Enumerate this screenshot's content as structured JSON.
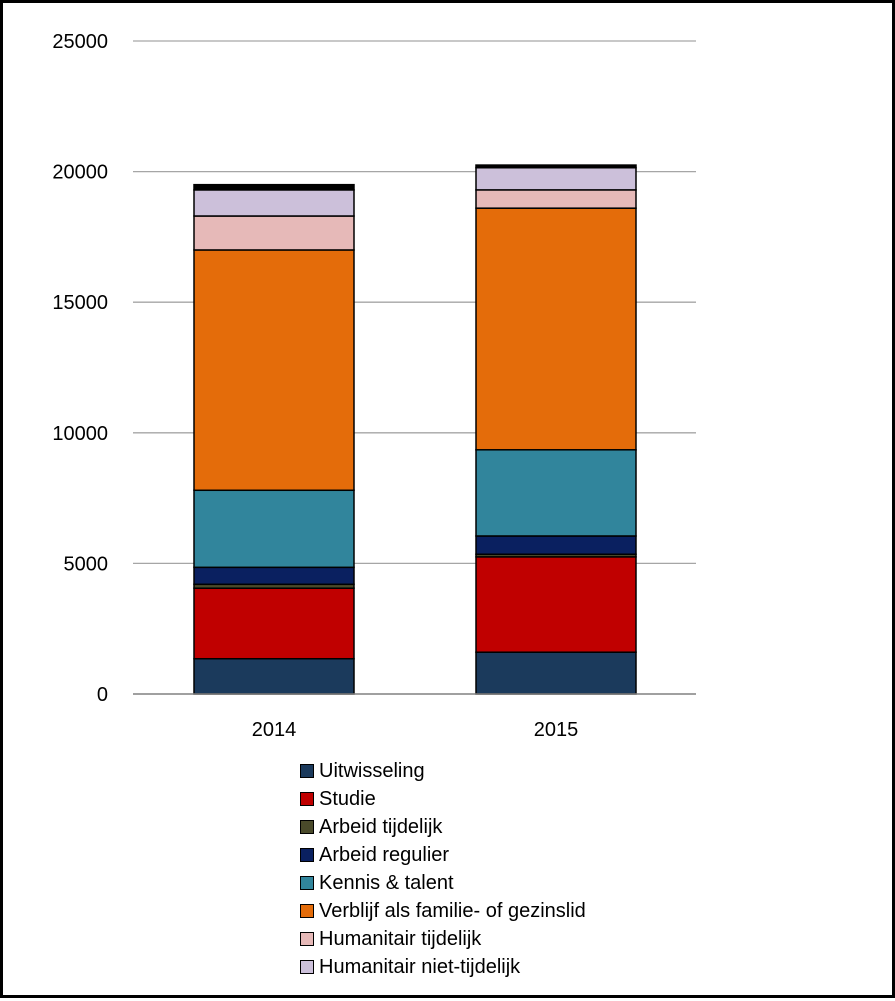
{
  "chart_data": {
    "type": "bar",
    "stacked": true,
    "categories": [
      "2014",
      "2015"
    ],
    "ylim": [
      0,
      25000
    ],
    "yticks": [
      "0",
      "5000",
      "10000",
      "15000",
      "20000",
      "25000"
    ],
    "grid": true,
    "legend_position": "bottom",
    "series": [
      {
        "name": "Uitwisseling",
        "color": "#1b3a5c",
        "values": [
          1350,
          1600
        ]
      },
      {
        "name": "Studie",
        "color": "#c00000",
        "values": [
          2700,
          3650
        ]
      },
      {
        "name": "Arbeid tijdelijk",
        "color": "#4a4a2a",
        "values": [
          150,
          100
        ]
      },
      {
        "name": "Arbeid regulier",
        "color": "#0a2060",
        "values": [
          650,
          700
        ]
      },
      {
        "name": "Kennis & talent",
        "color": "#31859c",
        "values": [
          2950,
          3300
        ]
      },
      {
        "name": "Verblijf als familie- of gezinslid",
        "color": "#e46c0a",
        "values": [
          9200,
          9250
        ]
      },
      {
        "name": "Humanitair tijdelijk",
        "color": "#e6b9b8",
        "values": [
          1300,
          700
        ]
      },
      {
        "name": "Humanitair niet-tijdelijk",
        "color": "#ccc0da",
        "values": [
          1000,
          850
        ]
      },
      {
        "name": "",
        "color": "#000000",
        "values": [
          200,
          100
        ]
      }
    ]
  }
}
